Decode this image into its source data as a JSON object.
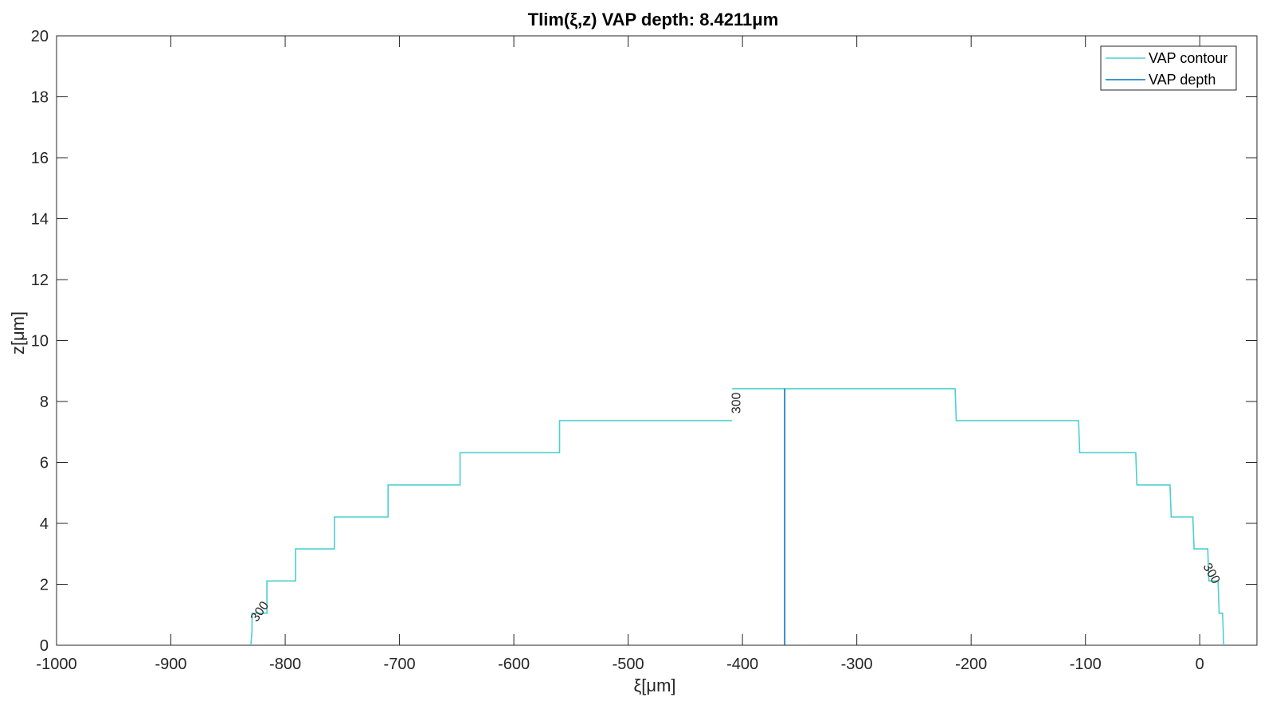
{
  "chart_data": {
    "type": "line",
    "title": "Tlim(ξ,z) VAP depth: 8.4211μm",
    "xlabel": "ξ[μm]",
    "ylabel": "z[μm]",
    "xlim": [
      -1000,
      50
    ],
    "ylim": [
      0,
      20
    ],
    "xticks": [
      -1000,
      -900,
      -800,
      -700,
      -600,
      -500,
      -400,
      -300,
      -200,
      -100,
      0
    ],
    "yticks": [
      0,
      2,
      4,
      6,
      8,
      10,
      12,
      14,
      16,
      18,
      20
    ],
    "grid": false,
    "legend_position": "top-right",
    "series": [
      {
        "name": "VAP contour",
        "color": "#4DCFCF",
        "segments": [
          {
            "x": [
              -830,
              -829,
              -829,
              -816,
              -816,
              -791,
              -791,
              -757,
              -757,
              -710,
              -710,
              -647,
              -647,
              -560,
              -560,
              -409
            ],
            "y": [
              0,
              0.5,
              1.05,
              1.05,
              2.11,
              2.11,
              3.16,
              3.16,
              4.21,
              4.21,
              5.26,
              5.26,
              6.32,
              6.32,
              7.37,
              7.37
            ]
          },
          {
            "x": [
              -409,
              -214,
              -213,
              -106,
              -105,
              -56,
              -55,
              -26,
              -25,
              -6,
              -5,
              7,
              8,
              16,
              17,
              20,
              21
            ],
            "y": [
              8.42,
              8.42,
              7.37,
              7.37,
              6.32,
              6.32,
              5.26,
              5.26,
              4.21,
              4.21,
              3.16,
              3.16,
              2.11,
              2.11,
              1.05,
              1.05,
              0
            ]
          }
        ],
        "labels": [
          {
            "text": "300",
            "x": -822,
            "y": 1.1,
            "angle": -55
          },
          {
            "text": "300",
            "x": -405,
            "y": 7.95,
            "angle": -90
          },
          {
            "text": "300",
            "x": 10,
            "y": 2.35,
            "angle": 60
          }
        ]
      },
      {
        "name": "VAP depth",
        "color": "#0072BD",
        "x": [
          -363,
          -363
        ],
        "y": [
          0,
          8.4211
        ]
      }
    ]
  }
}
